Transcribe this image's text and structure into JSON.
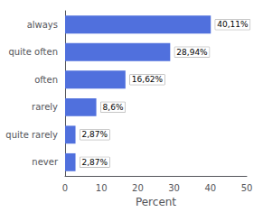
{
  "chart_data": {
    "type": "bar",
    "orientation": "horizontal",
    "categories": [
      "always",
      "quite often",
      "often",
      "rarely",
      "quite rarely",
      "never"
    ],
    "values": [
      40.11,
      28.94,
      16.62,
      8.6,
      2.87,
      2.87
    ],
    "value_labels": [
      "40,11%",
      "28,94%",
      "16,62%",
      "8,6%",
      "2,87%",
      "2,87%"
    ],
    "data_labels": true,
    "xlabel": "Percent",
    "xlim": [
      0,
      50
    ],
    "xticks": [
      0,
      10,
      20,
      30,
      40,
      50
    ],
    "grid": false
  }
}
